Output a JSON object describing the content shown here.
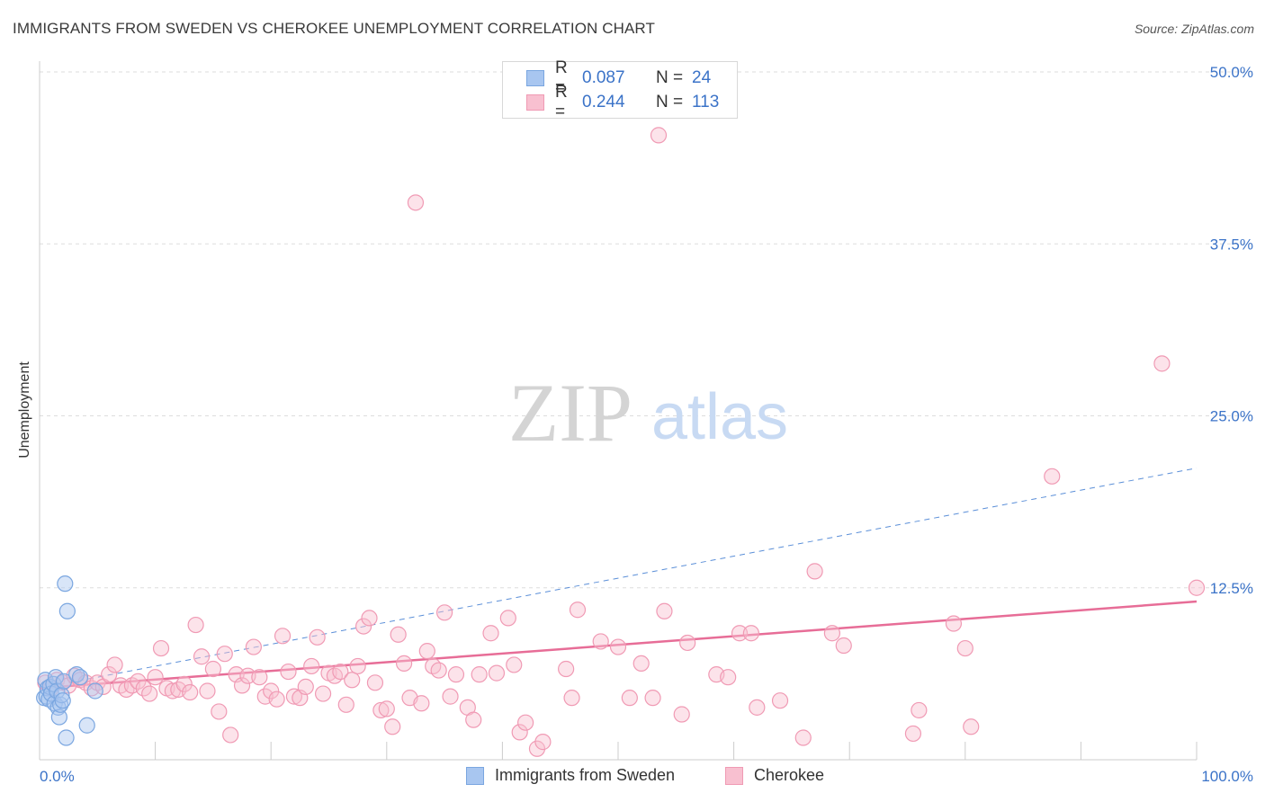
{
  "title": "IMMIGRANTS FROM SWEDEN VS CHEROKEE UNEMPLOYMENT CORRELATION CHART",
  "source": "Source: ZipAtlas.com",
  "watermark": {
    "zip": "ZIP",
    "atlas": "atlas"
  },
  "legend_top": [
    {
      "r_label": "R =",
      "r_value": "0.087",
      "n_label": "N =",
      "n_value": "24",
      "color": "#a8c6f0",
      "stroke": "#7aa6e0"
    },
    {
      "r_label": "R =",
      "r_value": "0.244",
      "n_label": "N =",
      "n_value": "113",
      "color": "#f8c0d0",
      "stroke": "#f09ab4"
    }
  ],
  "legend_bottom": [
    {
      "label": "Immigrants from Sweden",
      "color": "#a8c6f0",
      "stroke": "#7aa6e0"
    },
    {
      "label": "Cherokee",
      "color": "#f8c0d0",
      "stroke": "#f09ab4"
    }
  ],
  "chart_data": {
    "type": "scatter",
    "title": "IMMIGRANTS FROM SWEDEN VS CHEROKEE UNEMPLOYMENT CORRELATION CHART",
    "xlabel": "",
    "ylabel": "Unemployment",
    "xlim": [
      0,
      100
    ],
    "ylim": [
      0,
      52
    ],
    "x_tick_labels": {
      "left": "0.0%",
      "right": "100.0%"
    },
    "y_ticks": [
      12.5,
      25.0,
      37.5,
      50.0
    ],
    "y_tick_labels": [
      "12.5%",
      "25.0%",
      "37.5%",
      "50.0%"
    ],
    "grid": "horizontal dashed",
    "legend_position": "top-center",
    "series": [
      {
        "name": "Immigrants from Sweden",
        "color": "#7aa6e0",
        "fill": "#a8c6f0",
        "points": [
          [
            0.4,
            4.5
          ],
          [
            0.5,
            5.8
          ],
          [
            0.6,
            4.6
          ],
          [
            0.7,
            5.2
          ],
          [
            0.8,
            4.4
          ],
          [
            0.9,
            5.3
          ],
          [
            1.0,
            4.8
          ],
          [
            1.2,
            5.5
          ],
          [
            1.3,
            4.1
          ],
          [
            1.4,
            6.0
          ],
          [
            1.5,
            5.0
          ],
          [
            1.6,
            3.8
          ],
          [
            1.7,
            3.1
          ],
          [
            1.8,
            4.0
          ],
          [
            1.9,
            4.7
          ],
          [
            2.0,
            4.3
          ],
          [
            2.1,
            5.7
          ],
          [
            2.2,
            12.8
          ],
          [
            2.3,
            1.6
          ],
          [
            2.4,
            10.8
          ],
          [
            3.2,
            6.2
          ],
          [
            3.5,
            6.0
          ],
          [
            4.1,
            2.5
          ],
          [
            4.8,
            5.0
          ]
        ]
      },
      {
        "name": "Cherokee",
        "color": "#f09ab4",
        "fill": "#f8c0d0",
        "points": [
          [
            0.5,
            5.6
          ],
          [
            1.0,
            5.2
          ],
          [
            1.5,
            5.8
          ],
          [
            2.0,
            5.6
          ],
          [
            2.5,
            5.4
          ],
          [
            3.0,
            6.1
          ],
          [
            3.5,
            5.8
          ],
          [
            4.0,
            5.6
          ],
          [
            4.5,
            5.2
          ],
          [
            5.0,
            5.6
          ],
          [
            5.5,
            5.3
          ],
          [
            6.0,
            6.2
          ],
          [
            6.5,
            6.9
          ],
          [
            7.0,
            5.4
          ],
          [
            7.5,
            5.1
          ],
          [
            8.0,
            5.4
          ],
          [
            8.5,
            5.7
          ],
          [
            9.0,
            5.2
          ],
          [
            9.5,
            4.8
          ],
          [
            10.0,
            6.0
          ],
          [
            10.5,
            8.1
          ],
          [
            11.0,
            5.2
          ],
          [
            11.5,
            5.0
          ],
          [
            12.0,
            5.1
          ],
          [
            12.5,
            5.5
          ],
          [
            13.0,
            4.9
          ],
          [
            13.5,
            9.8
          ],
          [
            14.0,
            7.5
          ],
          [
            14.5,
            5.0
          ],
          [
            15.0,
            6.6
          ],
          [
            15.5,
            3.5
          ],
          [
            16.0,
            7.7
          ],
          [
            16.5,
            1.8
          ],
          [
            17.0,
            6.2
          ],
          [
            17.5,
            5.4
          ],
          [
            18.0,
            6.1
          ],
          [
            18.5,
            8.2
          ],
          [
            19.0,
            6.0
          ],
          [
            19.5,
            4.6
          ],
          [
            20.0,
            5.0
          ],
          [
            20.5,
            4.4
          ],
          [
            21.0,
            9.0
          ],
          [
            21.5,
            6.4
          ],
          [
            22.0,
            4.6
          ],
          [
            22.5,
            4.5
          ],
          [
            23.0,
            5.3
          ],
          [
            23.5,
            6.8
          ],
          [
            24.0,
            8.9
          ],
          [
            24.5,
            4.8
          ],
          [
            25.0,
            6.3
          ],
          [
            25.5,
            6.1
          ],
          [
            26.0,
            6.4
          ],
          [
            26.5,
            4.0
          ],
          [
            27.0,
            5.8
          ],
          [
            27.5,
            6.8
          ],
          [
            28.0,
            9.7
          ],
          [
            28.5,
            10.3
          ],
          [
            29.0,
            5.6
          ],
          [
            29.5,
            3.6
          ],
          [
            30.0,
            3.7
          ],
          [
            30.5,
            2.4
          ],
          [
            31.0,
            9.1
          ],
          [
            31.5,
            7.0
          ],
          [
            32.0,
            4.5
          ],
          [
            32.5,
            40.5
          ],
          [
            33.0,
            4.1
          ],
          [
            33.5,
            7.9
          ],
          [
            34.0,
            6.8
          ],
          [
            34.5,
            6.5
          ],
          [
            35.0,
            10.7
          ],
          [
            35.5,
            4.6
          ],
          [
            36.0,
            6.2
          ],
          [
            37.0,
            3.8
          ],
          [
            37.5,
            2.9
          ],
          [
            38.0,
            6.2
          ],
          [
            39.0,
            9.2
          ],
          [
            39.5,
            6.3
          ],
          [
            40.5,
            10.3
          ],
          [
            41.0,
            6.9
          ],
          [
            41.5,
            2.0
          ],
          [
            42.0,
            2.7
          ],
          [
            43.0,
            0.8
          ],
          [
            43.5,
            1.3
          ],
          [
            45.5,
            6.6
          ],
          [
            46.0,
            4.5
          ],
          [
            46.5,
            10.9
          ],
          [
            48.5,
            8.6
          ],
          [
            50.0,
            8.2
          ],
          [
            51.0,
            4.5
          ],
          [
            52.0,
            7.0
          ],
          [
            53.0,
            4.5
          ],
          [
            53.5,
            45.4
          ],
          [
            54.0,
            10.8
          ],
          [
            55.5,
            3.3
          ],
          [
            56.0,
            8.5
          ],
          [
            58.5,
            6.2
          ],
          [
            59.5,
            6.0
          ],
          [
            60.5,
            9.2
          ],
          [
            61.5,
            9.2
          ],
          [
            62.0,
            3.8
          ],
          [
            64.0,
            4.3
          ],
          [
            66.0,
            1.6
          ],
          [
            67.0,
            13.7
          ],
          [
            68.5,
            9.2
          ],
          [
            69.5,
            8.3
          ],
          [
            75.5,
            1.9
          ],
          [
            76.0,
            3.6
          ],
          [
            79.0,
            9.9
          ],
          [
            80.0,
            8.1
          ],
          [
            80.5,
            2.4
          ],
          [
            87.5,
            20.6
          ],
          [
            97.0,
            28.8
          ],
          [
            100,
            12.5
          ]
        ]
      }
    ],
    "trend_lines": [
      {
        "series": "Immigrants from Sweden",
        "style": "dashed",
        "x": [
          0,
          100
        ],
        "y": [
          5.2,
          21.2
        ]
      },
      {
        "series": "Cherokee",
        "style": "solid",
        "x": [
          0,
          100
        ],
        "y": [
          5.2,
          11.5
        ]
      }
    ]
  }
}
